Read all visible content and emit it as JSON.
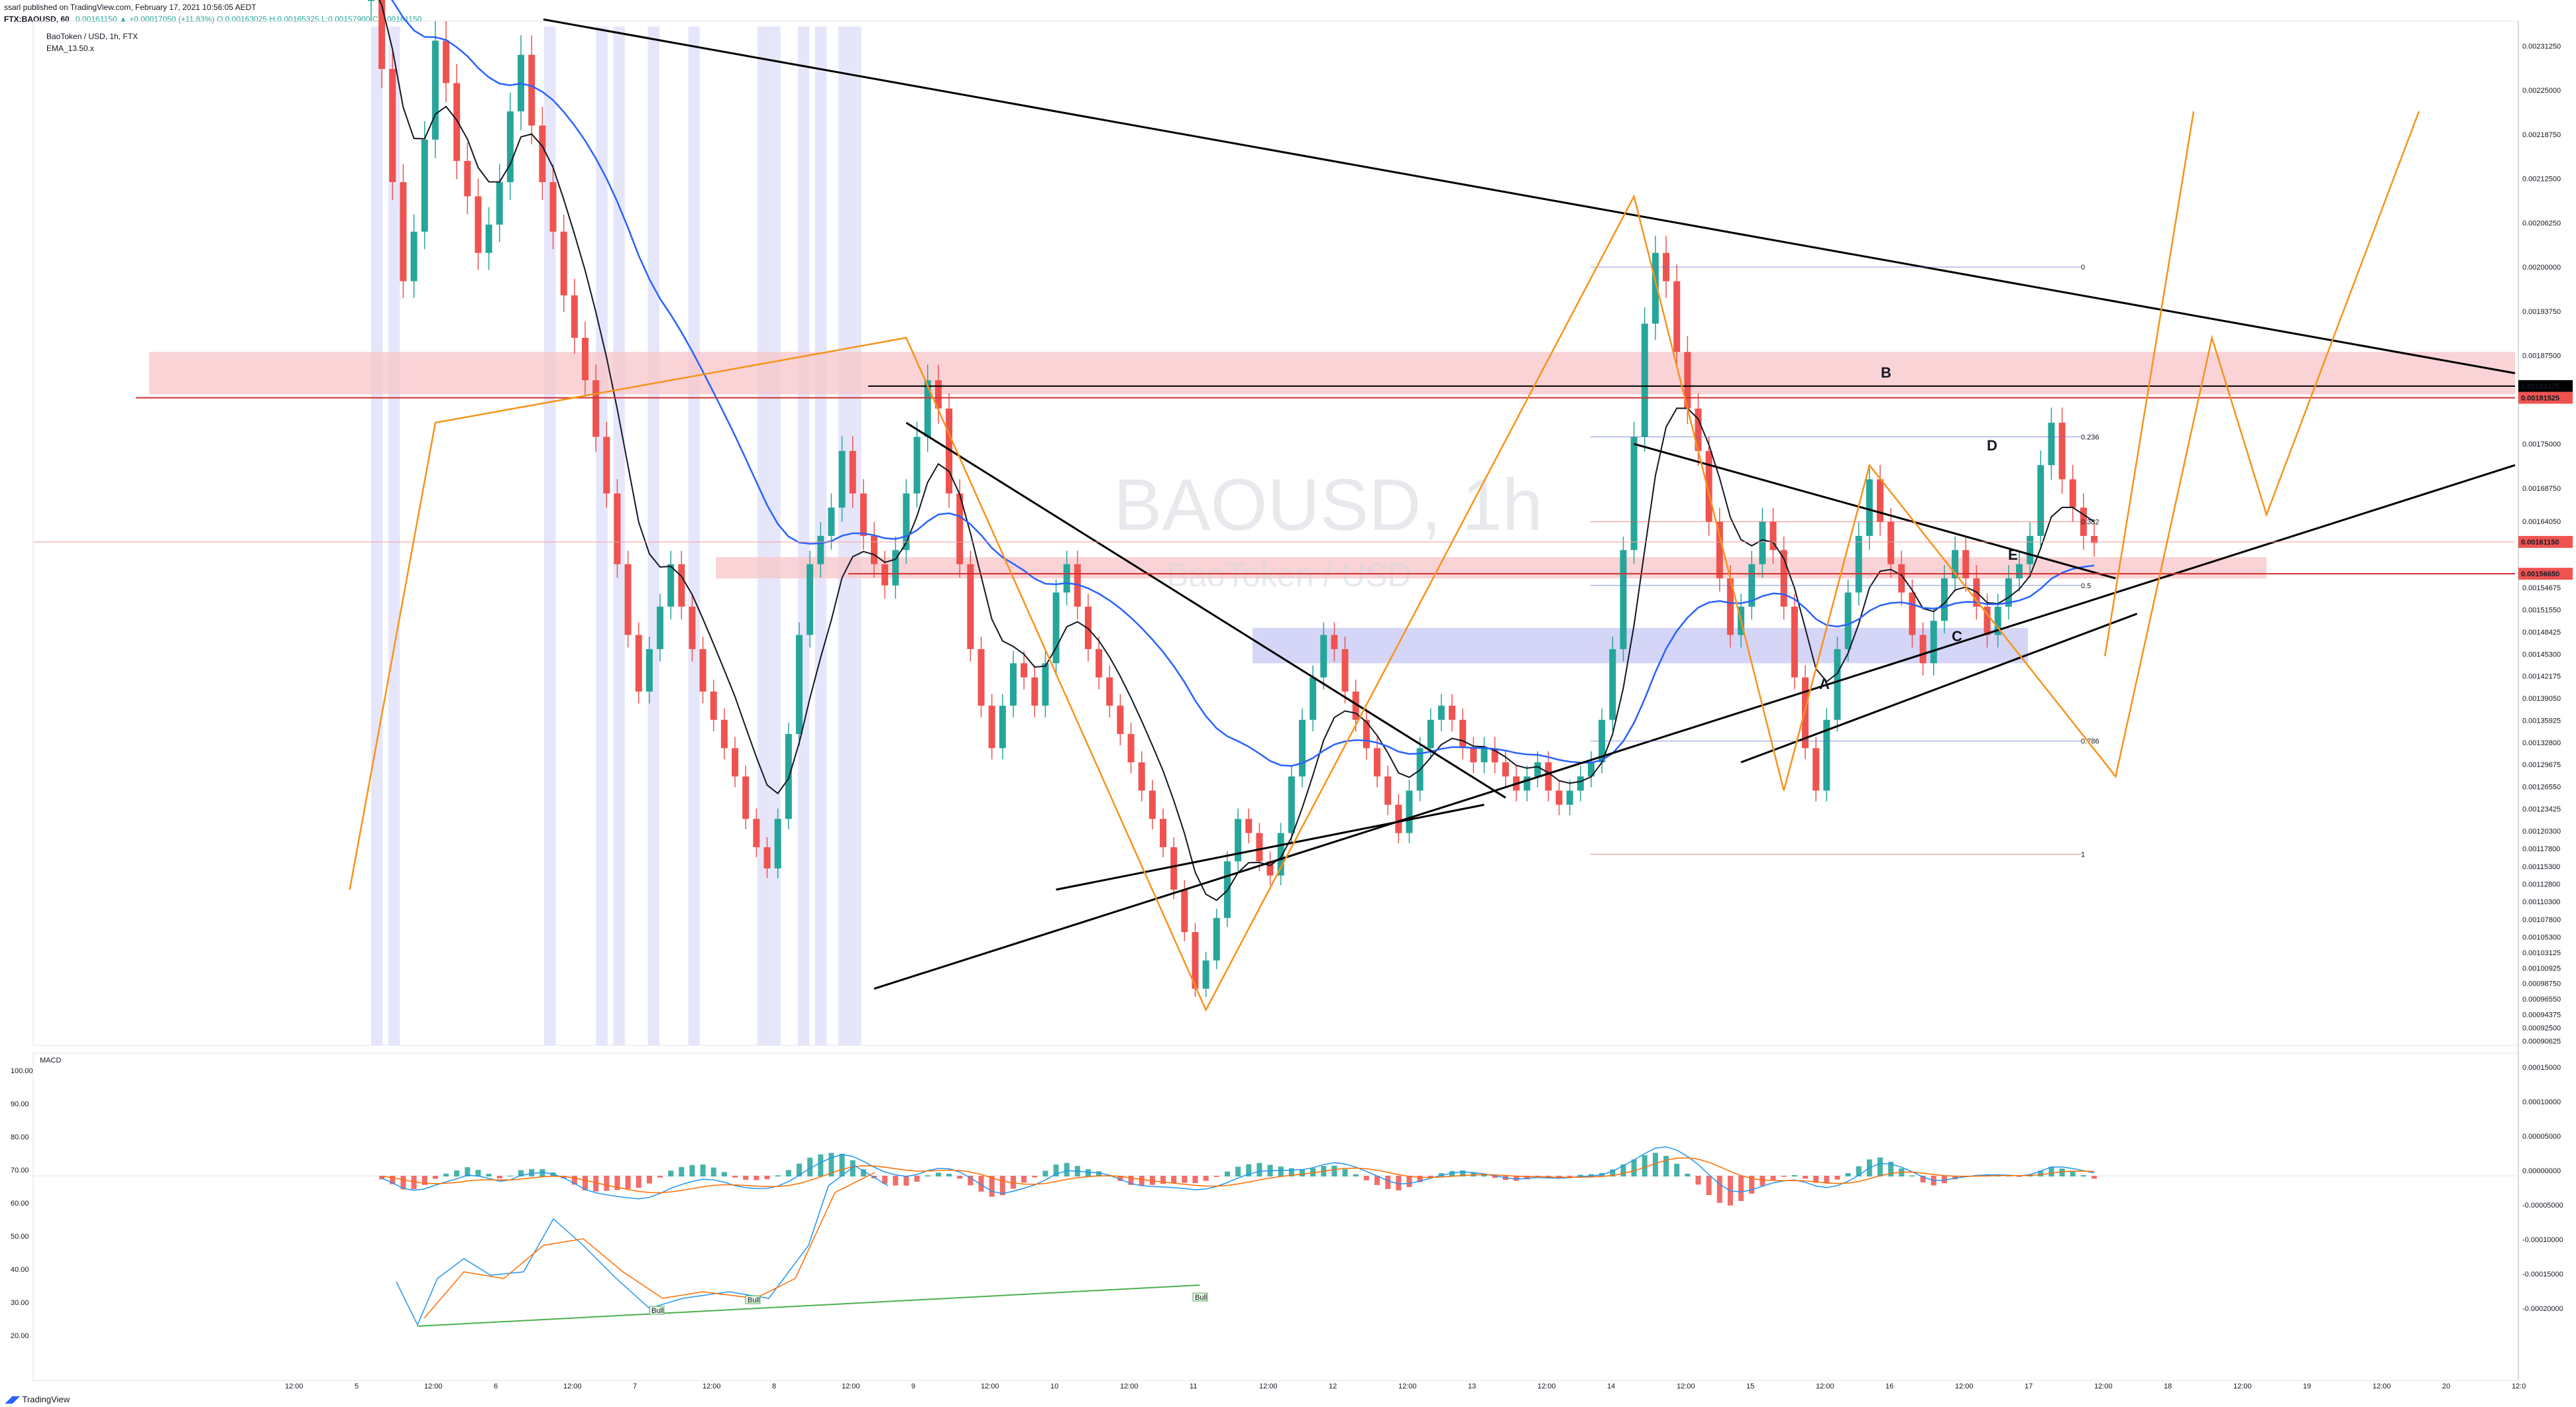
{
  "header": {
    "publisher_line": "ssarl published on TradingView.com, February 17, 2021 10:56:05 AEDT",
    "symbol_line_prefix": "FTX:BAOUSD, 60",
    "price_line": "0.00161150 ▲ +0.00017050 (+11.83%) O:0.00163025 H:0.00165325 L:0.00157900 C:0.00161150",
    "series_title": "BaoToken / USD, 1h, FTX",
    "ema_label": "EMA_13.50.x"
  },
  "watermark": {
    "symbol": "BAOUSD, 1h",
    "name": "BaoToken / USD"
  },
  "footer": {
    "brand": "TradingView"
  },
  "colors": {
    "bull": "#26a69a",
    "bear": "#ef5350",
    "ema_fast": "#131722",
    "ema_slow": "#2962ff",
    "zigzag": "#f7931a",
    "trendline": "#000000",
    "resistance_zone": "#f8c8cc",
    "demand_zone": "#c9cbf5",
    "session_band": "#dcdcfa",
    "macd_line": "#2196f3",
    "signal_line": "#ff6d00",
    "divergence": "#4caf50"
  },
  "chart_data": [
    {
      "type": "candlestick",
      "title": "BaoToken / USD, 1h, FTX",
      "ylim": [
        0.0009,
        0.00234
      ],
      "price_axis_ticks": [
        "0.00231250",
        "0.00225000",
        "0.00218750",
        "0.00212500",
        "0.00206250",
        "0.00200000",
        "0.00193750",
        "0.00187500",
        "0.00175000",
        "0.00168750",
        "0.00164050",
        "0.00154675",
        "0.00151550",
        "0.00148425",
        "0.00145300",
        "0.00142175",
        "0.00139050",
        "0.00135925",
        "0.00132800",
        "0.00129675",
        "0.00126550",
        "0.00123425",
        "0.00120300",
        "0.00117800",
        "0.00115300",
        "0.00112800",
        "0.00110300",
        "0.00107800",
        "0.00105300",
        "0.00103125",
        "0.00100925",
        "0.00098750",
        "0.00096550",
        "0.00094375",
        "0.00092500",
        "0.00090625"
      ],
      "price_tags": [
        {
          "value": 0.00183175,
          "label": "0.00183175",
          "color": "#000000"
        },
        {
          "value": 0.00181525,
          "label": "0.00181525",
          "color": "#ef5350"
        },
        {
          "value": 0.0016115,
          "label": "0.00161150",
          "color": "#ef5350"
        },
        {
          "value": 0.0015665,
          "label": "0.00156650",
          "color": "#ef5350"
        }
      ],
      "time_axis_labels": [
        "12:00",
        "5",
        "12:00",
        "6",
        "12:00",
        "7",
        "12:00",
        "8",
        "12:00",
        "9",
        "12:00",
        "10",
        "12:00",
        "11",
        "12:00",
        "12",
        "12:00",
        "13",
        "12:00",
        "14",
        "12:00",
        "15",
        "12:00",
        "16",
        "12:00",
        "17",
        "12:00",
        "18",
        "12:00",
        "19",
        "12:00",
        "20",
        "12:0"
      ],
      "series": [
        {
          "name": "Close",
          "description": "approximate hourly closes, Feb 4 22:00 to Feb 17 10:00",
          "values": [
            0.0024,
            0.00228,
            0.00212,
            0.00198,
            0.00205,
            0.00218,
            0.00232,
            0.00226,
            0.00215,
            0.0021,
            0.00202,
            0.00206,
            0.00212,
            0.00222,
            0.0023,
            0.0022,
            0.00212,
            0.00205,
            0.00196,
            0.0019,
            0.00184,
            0.00176,
            0.00168,
            0.00158,
            0.00148,
            0.0014,
            0.00146,
            0.00152,
            0.00158,
            0.00152,
            0.00146,
            0.0014,
            0.00136,
            0.00132,
            0.00128,
            0.00122,
            0.00118,
            0.00115,
            0.00122,
            0.00134,
            0.00148,
            0.00158,
            0.00162,
            0.00166,
            0.00174,
            0.00168,
            0.00162,
            0.00158,
            0.00155,
            0.0016,
            0.00168,
            0.00176,
            0.00184,
            0.0018,
            0.00168,
            0.00158,
            0.00146,
            0.00138,
            0.00132,
            0.00138,
            0.00144,
            0.00142,
            0.00138,
            0.00144,
            0.00154,
            0.00158,
            0.00152,
            0.00146,
            0.00142,
            0.00138,
            0.00134,
            0.0013,
            0.00126,
            0.00122,
            0.00118,
            0.00112,
            0.00106,
            0.00098,
            0.00102,
            0.00108,
            0.00116,
            0.00122,
            0.0012,
            0.00116,
            0.00114,
            0.0012,
            0.00128,
            0.00136,
            0.00142,
            0.00148,
            0.00146,
            0.0014,
            0.00136,
            0.00132,
            0.00128,
            0.00124,
            0.0012,
            0.00126,
            0.00132,
            0.00136,
            0.00138,
            0.00136,
            0.00132,
            0.0013,
            0.00132,
            0.0013,
            0.00128,
            0.00126,
            0.00128,
            0.0013,
            0.00126,
            0.00124,
            0.00126,
            0.00128,
            0.0013,
            0.00136,
            0.00146,
            0.0016,
            0.00176,
            0.00192,
            0.00202,
            0.00198,
            0.00188,
            0.0018,
            0.00174,
            0.00164,
            0.00156,
            0.00148,
            0.00152,
            0.00158,
            0.00164,
            0.0016,
            0.00152,
            0.00142,
            0.00132,
            0.00126,
            0.00136,
            0.00146,
            0.00154,
            0.00162,
            0.0017,
            0.00164,
            0.00158,
            0.00154,
            0.00148,
            0.00144,
            0.0015,
            0.00156,
            0.0016,
            0.00156,
            0.00152,
            0.00148,
            0.00152,
            0.00156,
            0.00158,
            0.00162,
            0.00172,
            0.00178,
            0.0017,
            0.00166,
            0.00162,
            0.00161
          ]
        },
        {
          "name": "EMA_13",
          "description": "black moving average line"
        },
        {
          "name": "EMA_50",
          "description": "blue moving average line"
        }
      ],
      "annotations": {
        "wave_labels": [
          "A",
          "B",
          "C",
          "D",
          "E"
        ],
        "fibonacci": [
          {
            "level": "0",
            "value": 0.002
          },
          {
            "level": "0.236",
            "value": 0.00176
          },
          {
            "level": "0.382",
            "value": 0.00164
          },
          {
            "level": "0.5",
            "value": 0.00155
          },
          {
            "level": "0.786",
            "value": 0.00133
          },
          {
            "level": "1",
            "value": 0.00117
          }
        ],
        "signals": [
          "Bull",
          "Bull",
          "Bull"
        ]
      }
    },
    {
      "type": "bar",
      "title": "MACD",
      "left_axis_ticks": [
        "100.00",
        "90.00",
        "80.00",
        "70.00",
        "60.00",
        "50.00",
        "40.00",
        "30.00",
        "20.00"
      ],
      "right_axis_ticks": [
        "0.00015000",
        "0.00010000",
        "0.00005000",
        "0.00000000",
        "-0.00005000",
        "-0.00010000",
        "-0.00015000",
        "-0.00020000"
      ],
      "series": [
        {
          "name": "Histogram",
          "description": "MACD histogram, green above zero, red below"
        },
        {
          "name": "MACD",
          "description": "blue line"
        },
        {
          "name": "Signal",
          "description": "orange line"
        },
        {
          "name": "Oscillator",
          "description": "blue/orange lines in lower left, scale 0-100 with bullish divergence"
        }
      ]
    }
  ]
}
